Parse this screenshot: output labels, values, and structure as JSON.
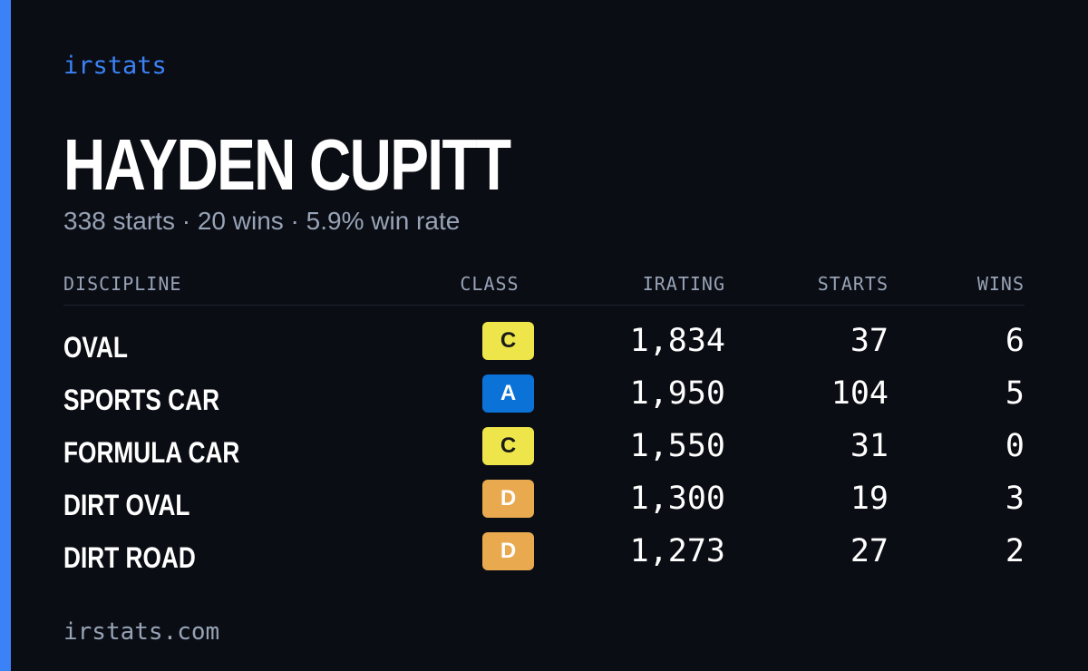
{
  "brand": "irstats",
  "player": {
    "name": "HAYDEN CUPITT",
    "summary": "338 starts · 20 wins · 5.9% win rate"
  },
  "table": {
    "headers": {
      "discipline": "DISCIPLINE",
      "class": "CLASS",
      "irating": "IRATING",
      "starts": "STARTS",
      "wins": "WINS"
    },
    "rows": [
      {
        "discipline": "OVAL",
        "class": "C",
        "irating": "1,834",
        "starts": "37",
        "wins": "6"
      },
      {
        "discipline": "SPORTS CAR",
        "class": "A",
        "irating": "1,950",
        "starts": "104",
        "wins": "5"
      },
      {
        "discipline": "FORMULA CAR",
        "class": "C",
        "irating": "1,550",
        "starts": "31",
        "wins": "0"
      },
      {
        "discipline": "DIRT OVAL",
        "class": "D",
        "irating": "1,300",
        "starts": "19",
        "wins": "3"
      },
      {
        "discipline": "DIRT ROAD",
        "class": "D",
        "irating": "1,273",
        "starts": "27",
        "wins": "2"
      }
    ]
  },
  "class_colors": {
    "A": {
      "bg": "#0b72d8",
      "fg": "#ffffff"
    },
    "C": {
      "bg": "#ede54a",
      "fg": "#1a1a1a"
    },
    "D": {
      "bg": "#e9a94e",
      "fg": "#ffffff"
    }
  },
  "colors": {
    "accent": "#3b82f6",
    "background": "#0b0d14",
    "muted_text": "#97a3b6"
  },
  "footer": "irstats.com"
}
